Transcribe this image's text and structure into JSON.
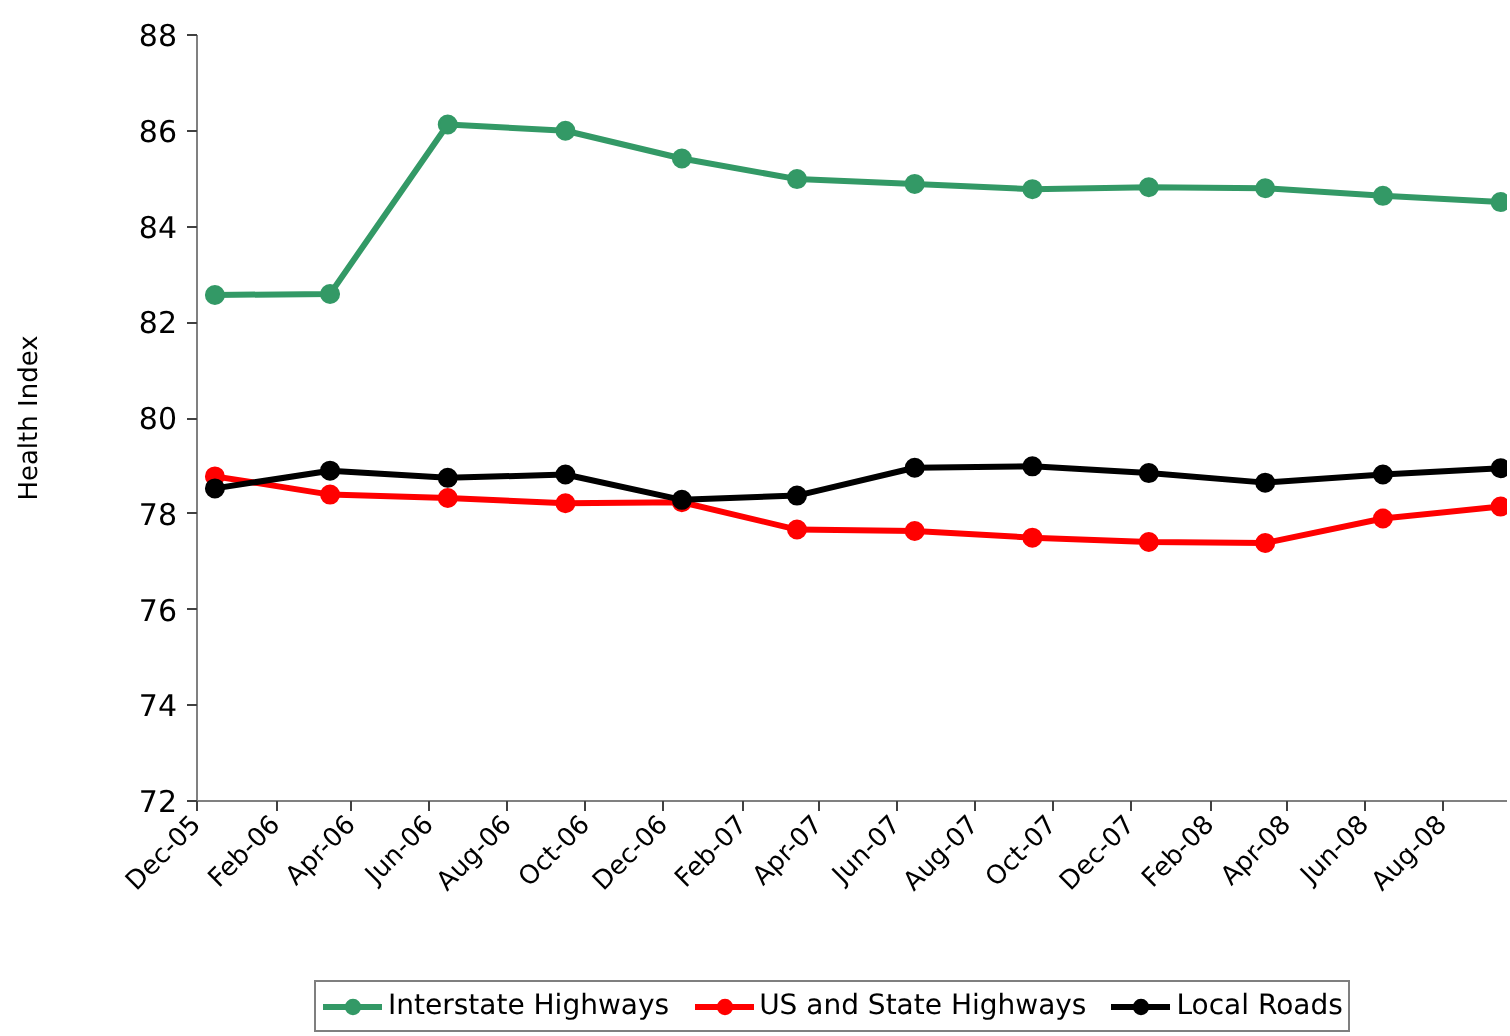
{
  "chart_data": {
    "type": "line",
    "ylabel": "Health Index",
    "x": [
      "2005-12-15",
      "2006-03-15",
      "2006-06-15",
      "2006-09-15",
      "2006-12-15",
      "2007-03-15",
      "2007-06-15",
      "2007-09-15",
      "2007-12-15",
      "2008-03-15",
      "2008-06-15",
      "2008-09-15"
    ],
    "series": [
      {
        "name": "Interstate Highways",
        "color": "#339966",
        "values": [
          82.57,
          82.59,
          86.13,
          86.0,
          85.42,
          84.99,
          84.89,
          84.78,
          84.82,
          84.8,
          84.64,
          84.51
        ]
      },
      {
        "name": "US and State Highways",
        "color": "#ff0000",
        "values": [
          78.78,
          78.4,
          78.33,
          78.22,
          78.24,
          77.67,
          77.64,
          77.5,
          77.41,
          77.39,
          77.9,
          78.15
        ]
      },
      {
        "name": "Local Roads",
        "color": "#000000",
        "values": [
          78.53,
          78.9,
          78.75,
          78.82,
          78.29,
          78.38,
          78.96,
          78.99,
          78.85,
          78.65,
          78.82,
          78.95
        ]
      }
    ],
    "xlim": [
      "2005-12-01",
      "2008-09-20"
    ],
    "xticks": [
      {
        "value": "2005-12-01",
        "label": "Dec-05"
      },
      {
        "value": "2006-02-01",
        "label": "Feb-06"
      },
      {
        "value": "2006-04-01",
        "label": "Apr-06"
      },
      {
        "value": "2006-06-01",
        "label": "Jun-06"
      },
      {
        "value": "2006-08-01",
        "label": "Aug-06"
      },
      {
        "value": "2006-10-01",
        "label": "Oct-06"
      },
      {
        "value": "2006-12-01",
        "label": "Dec-06"
      },
      {
        "value": "2007-02-01",
        "label": "Feb-07"
      },
      {
        "value": "2007-04-01",
        "label": "Apr-07"
      },
      {
        "value": "2007-06-01",
        "label": "Jun-07"
      },
      {
        "value": "2007-08-01",
        "label": "Aug-07"
      },
      {
        "value": "2007-10-01",
        "label": "Oct-07"
      },
      {
        "value": "2007-12-01",
        "label": "Dec-07"
      },
      {
        "value": "2008-02-01",
        "label": "Feb-08"
      },
      {
        "value": "2008-04-01",
        "label": "Apr-08"
      },
      {
        "value": "2008-06-01",
        "label": "Jun-08"
      },
      {
        "value": "2008-08-01",
        "label": "Aug-08"
      }
    ],
    "ylim": [
      72,
      88
    ],
    "yticks": [
      72,
      74,
      76,
      78,
      80,
      82,
      84,
      86,
      88
    ],
    "marker": "circle",
    "line_style": "solid",
    "legend": "bottom"
  }
}
